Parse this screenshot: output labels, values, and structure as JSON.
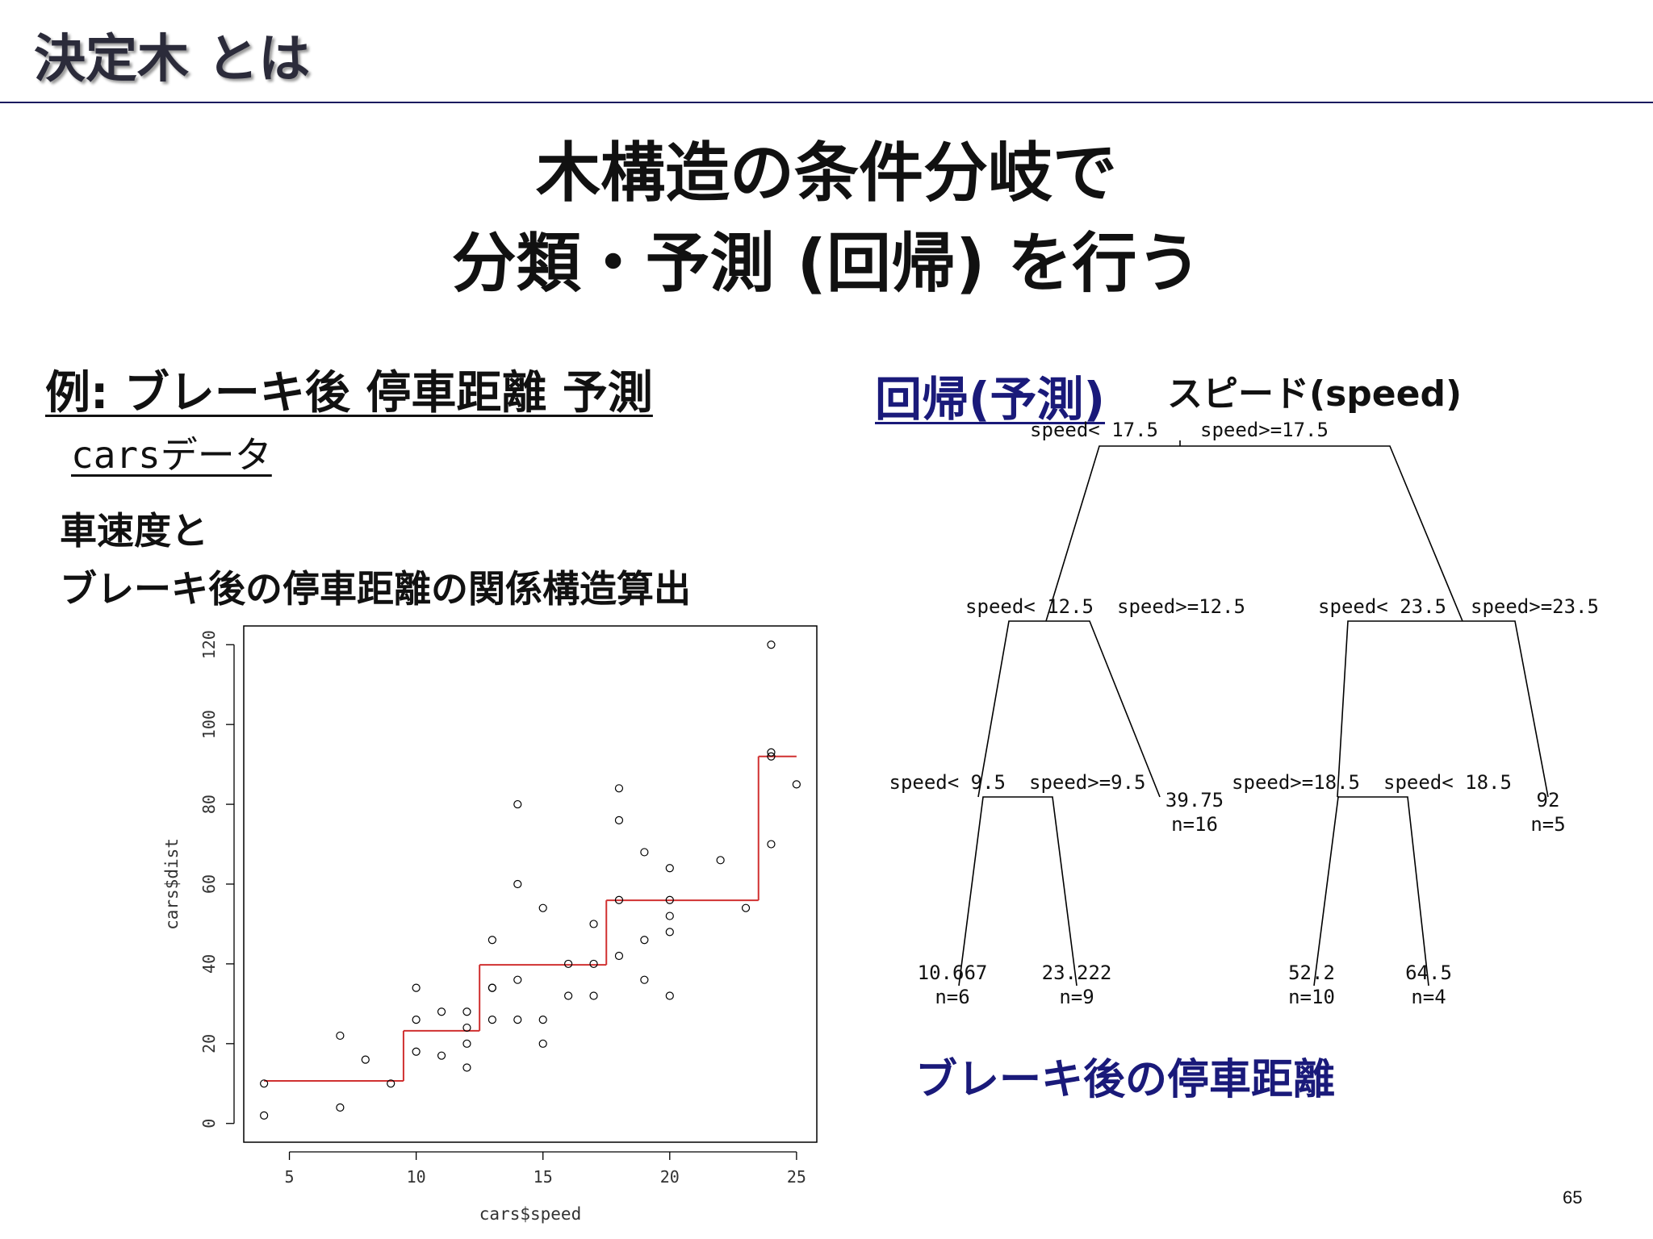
{
  "header": {
    "title": "決定木 とは"
  },
  "headline": {
    "line1": "木構造の条件分岐で",
    "line2": "分類・予測 (回帰) を行う"
  },
  "example": {
    "title": "例: ブレーキ後 停車距離 予測",
    "dataset": "carsデータ",
    "desc_line1": "車速度と",
    "desc_line2": "ブレーキ後の停車距離の関係構造算出"
  },
  "regression": {
    "title": "回帰(予測)",
    "variable": "スピード(speed)",
    "target": "ブレーキ後の停車距離"
  },
  "tree": {
    "nodes": [
      {
        "id": "root",
        "left_label": "speed< 17.5",
        "right_label": "speed>=17.5"
      },
      {
        "id": "n2",
        "left_label": "speed< 12.5",
        "right_label": "speed>=12.5"
      },
      {
        "id": "n3",
        "left_label": "speed< 23.5",
        "right_label": "speed>=23.5"
      },
      {
        "id": "n4",
        "left_label": "speed< 9.5",
        "right_label": "speed>=9.5"
      },
      {
        "id": "n6",
        "left_label": "speed>=18.5",
        "right_label": "speed< 18.5"
      }
    ],
    "leaves": [
      {
        "id": "l1",
        "value": "10.667",
        "n": "n=6"
      },
      {
        "id": "l2",
        "value": "23.222",
        "n": "n=9"
      },
      {
        "id": "l3",
        "value": "39.75",
        "n": "n=16"
      },
      {
        "id": "l4",
        "value": "52.2",
        "n": "n=10"
      },
      {
        "id": "l5",
        "value": "64.5",
        "n": "n=4"
      },
      {
        "id": "l6",
        "value": "92",
        "n": "n=5"
      }
    ]
  },
  "chart_data": {
    "type": "scatter",
    "xlabel": "cars$speed",
    "ylabel": "cars$dist",
    "xlim": [
      3.2,
      25.8
    ],
    "ylim": [
      -4.7,
      124.7
    ],
    "xticks": [
      5,
      10,
      15,
      20,
      25
    ],
    "yticks": [
      0,
      20,
      40,
      60,
      80,
      100,
      120
    ],
    "grid": false,
    "points": [
      [
        4,
        2
      ],
      [
        4,
        10
      ],
      [
        7,
        4
      ],
      [
        7,
        22
      ],
      [
        8,
        16
      ],
      [
        9,
        10
      ],
      [
        10,
        18
      ],
      [
        10,
        26
      ],
      [
        10,
        34
      ],
      [
        11,
        17
      ],
      [
        11,
        28
      ],
      [
        12,
        14
      ],
      [
        12,
        20
      ],
      [
        12,
        24
      ],
      [
        12,
        28
      ],
      [
        13,
        26
      ],
      [
        13,
        34
      ],
      [
        13,
        34
      ],
      [
        13,
        46
      ],
      [
        14,
        26
      ],
      [
        14,
        36
      ],
      [
        14,
        60
      ],
      [
        14,
        80
      ],
      [
        15,
        20
      ],
      [
        15,
        26
      ],
      [
        15,
        54
      ],
      [
        16,
        32
      ],
      [
        16,
        40
      ],
      [
        17,
        32
      ],
      [
        17,
        40
      ],
      [
        17,
        50
      ],
      [
        18,
        42
      ],
      [
        18,
        56
      ],
      [
        18,
        76
      ],
      [
        18,
        84
      ],
      [
        19,
        36
      ],
      [
        19,
        46
      ],
      [
        19,
        68
      ],
      [
        20,
        32
      ],
      [
        20,
        48
      ],
      [
        20,
        52
      ],
      [
        20,
        56
      ],
      [
        20,
        64
      ],
      [
        22,
        66
      ],
      [
        23,
        54
      ],
      [
        24,
        70
      ],
      [
        24,
        92
      ],
      [
        24,
        93
      ],
      [
        24,
        120
      ],
      [
        25,
        85
      ]
    ],
    "step_series": {
      "color": "#d03030",
      "segments": [
        [
          4,
          9.5,
          10.667
        ],
        [
          9.5,
          12.5,
          23.222
        ],
        [
          12.5,
          17.5,
          39.75
        ],
        [
          17.5,
          23.5,
          55.929
        ],
        [
          23.5,
          25,
          92
        ]
      ]
    }
  }
}
